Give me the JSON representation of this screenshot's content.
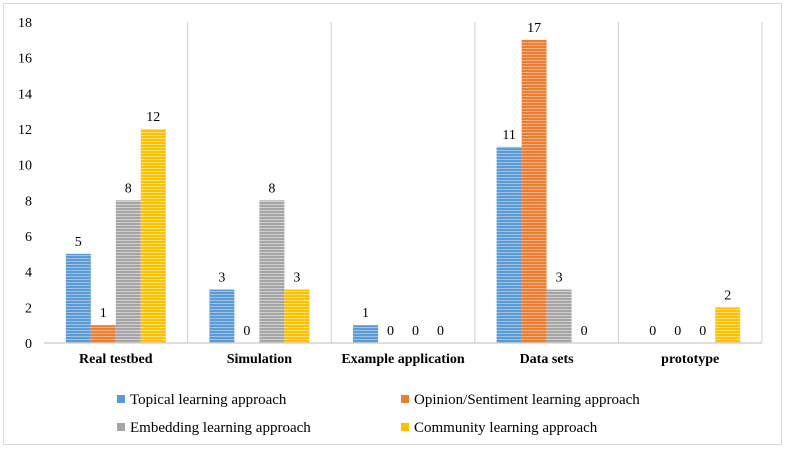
{
  "chart_data": {
    "type": "bar",
    "title": "",
    "xlabel": "",
    "ylabel": "",
    "ylim": [
      0,
      18
    ],
    "yticks": [
      0,
      2,
      4,
      6,
      8,
      10,
      12,
      14,
      16,
      18
    ],
    "grid": "vertical separators between categories",
    "legend_position": "bottom",
    "categories": [
      "Real testbed",
      "Simulation",
      "Example application",
      "Data sets",
      "prototype"
    ],
    "series": [
      {
        "name": "Topical learning approach",
        "color": "#5b9bd5",
        "values": [
          5,
          3,
          1,
          11,
          0
        ]
      },
      {
        "name": "Opinion/Sentiment learning approach",
        "color": "#ed7d31",
        "values": [
          1,
          0,
          0,
          17,
          0
        ]
      },
      {
        "name": "Embedding learning approach",
        "color": "#a5a5a5",
        "values": [
          8,
          8,
          0,
          3,
          0
        ]
      },
      {
        "name": "Community learning approach",
        "color": "#ffc000",
        "values": [
          12,
          3,
          0,
          0,
          2
        ]
      }
    ]
  }
}
